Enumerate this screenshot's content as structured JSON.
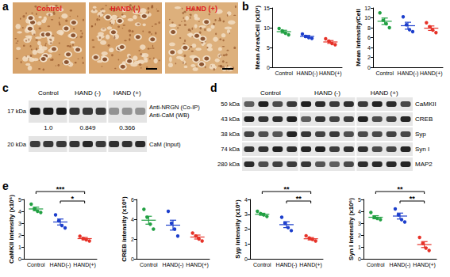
{
  "figure": {
    "panel_labels": [
      "a",
      "b",
      "c",
      "d",
      "e"
    ],
    "histology": {
      "titles": [
        "Control",
        "HAND (-)",
        "HAND (+)"
      ]
    },
    "coip_blot": {
      "groups": [
        "Control",
        "HAND (-)",
        "HAND (+)"
      ],
      "rows": [
        {
          "size": "17 kDa",
          "names": [
            "Anti-NRGN (Co-IP)",
            "Anti-CaM (WB)"
          ],
          "ratios": [
            {
              "value": 1.0,
              "label": "1.0"
            },
            {
              "value": 0.849,
              "label": "0.849"
            },
            {
              "value": 0.366,
              "label": "0.366"
            }
          ]
        },
        {
          "size": "20 kDa",
          "names": [
            "CaM (Input)"
          ]
        }
      ]
    },
    "western_blot": {
      "groups": [
        "Control",
        "HAND (-)",
        "HAND (+)"
      ],
      "rows": [
        {
          "size": "50 kDa",
          "name": "CaMKII"
        },
        {
          "size": "43 kDa",
          "name": "CREB"
        },
        {
          "size": "38 kDa",
          "name": "Syp"
        },
        {
          "size": "74 kDa",
          "name": "Syn I"
        },
        {
          "size": "280 kDa",
          "name": "MAP2"
        }
      ]
    }
  },
  "chart_data": [
    {
      "type": "scatter",
      "ylabel": "Mean Area/Cell (x10³)",
      "categories": [
        "Control",
        "HAND(-)",
        "HAND(+)"
      ],
      "colors": [
        "#22a043",
        "#1d3fcc",
        "#e63228"
      ],
      "points": [
        [
          9.8,
          9.2,
          8.6,
          8.2
        ],
        [
          8.4,
          7.8,
          7.5,
          7.3
        ],
        [
          7.2,
          6.6,
          6.0,
          5.7
        ]
      ],
      "means": [
        9.0,
        7.8,
        6.4
      ],
      "sem": [
        0.35,
        0.25,
        0.35
      ],
      "ylim": [
        0,
        15
      ],
      "yticks": [
        0,
        5,
        10,
        15
      ],
      "grid": false
    },
    {
      "type": "scatter",
      "ylabel": "Mean Intensity/Cell",
      "categories": [
        "Control",
        "HAND(-)",
        "HAND(+)"
      ],
      "colors": [
        "#22a043",
        "#1d3fcc",
        "#e63228"
      ],
      "points": [
        [
          11.0,
          9.5,
          8.8,
          8.0
        ],
        [
          10.2,
          8.6,
          7.6,
          7.2
        ],
        [
          9.0,
          8.2,
          7.5,
          7.0
        ]
      ],
      "means": [
        9.3,
        8.4,
        7.9
      ],
      "sem": [
        0.65,
        0.7,
        0.45
      ],
      "ylim": [
        0,
        12
      ],
      "yticks": [
        0,
        2,
        4,
        6,
        8,
        10,
        12
      ],
      "grid": false
    },
    {
      "type": "scatter",
      "ylabel": "CaMKII intensity (x10⁶)",
      "categories": [
        "Control",
        "HAND(-)",
        "HAND(+)"
      ],
      "colors": [
        "#22a043",
        "#1d3fcc",
        "#e63228"
      ],
      "points": [
        [
          4.6,
          4.2,
          4.0,
          3.9
        ],
        [
          3.7,
          3.2,
          2.8,
          2.6
        ],
        [
          1.9,
          1.7,
          1.6,
          1.5
        ]
      ],
      "means": [
        4.2,
        3.1,
        1.7
      ],
      "sem": [
        0.15,
        0.25,
        0.1
      ],
      "ylim": [
        0,
        5
      ],
      "yticks": [
        0,
        1,
        2,
        3,
        4,
        5
      ],
      "grid": false,
      "significance": [
        {
          "between": [
            "Control",
            "HAND(+)"
          ],
          "label": "***"
        },
        {
          "between": [
            "HAND(-)",
            "HAND(+)"
          ],
          "label": "*"
        }
      ]
    },
    {
      "type": "scatter",
      "ylabel": "CREB intensity (x10⁶)",
      "categories": [
        "Control",
        "HAND(-)",
        "HAND(+)"
      ],
      "colors": [
        "#22a043",
        "#1d3fcc",
        "#e63228"
      ],
      "points": [
        [
          5.0,
          4.2,
          3.5,
          3.0
        ],
        [
          4.8,
          3.6,
          3.0,
          2.3
        ],
        [
          2.6,
          2.3,
          2.0,
          1.8
        ]
      ],
      "means": [
        3.9,
        3.4,
        2.2
      ],
      "sem": [
        0.4,
        0.5,
        0.2
      ],
      "ylim": [
        0,
        6
      ],
      "yticks": [
        0,
        2,
        4,
        6
      ],
      "grid": false
    },
    {
      "type": "scatter",
      "ylabel": "Syp intensity (x10⁶)",
      "categories": [
        "Control",
        "HAND(-)",
        "HAND(+)"
      ],
      "colors": [
        "#22a043",
        "#1d3fcc",
        "#e63228"
      ],
      "points": [
        [
          3.2,
          3.05,
          2.95,
          2.85
        ],
        [
          2.8,
          2.4,
          2.1,
          1.9
        ],
        [
          1.55,
          1.4,
          1.3,
          1.2
        ]
      ],
      "means": [
        3.0,
        2.3,
        1.35
      ],
      "sem": [
        0.07,
        0.2,
        0.08
      ],
      "ylim": [
        0,
        4
      ],
      "yticks": [
        0,
        1,
        2,
        3,
        4
      ],
      "grid": false,
      "significance": [
        {
          "between": [
            "Control",
            "HAND(+)"
          ],
          "label": "**"
        },
        {
          "between": [
            "HAND(-)",
            "HAND(+)"
          ],
          "label": "**"
        }
      ]
    },
    {
      "type": "scatter",
      "ylabel": "Syn I intensity (x10⁶)",
      "categories": [
        "Control",
        "HAND(-)",
        "HAND(+)"
      ],
      "colors": [
        "#22a043",
        "#1d3fcc",
        "#e63228"
      ],
      "points": [
        [
          3.9,
          3.5,
          3.4,
          3.3
        ],
        [
          4.2,
          3.7,
          3.3,
          3.1
        ],
        [
          1.8,
          1.3,
          0.9,
          0.7
        ]
      ],
      "means": [
        3.5,
        3.6,
        1.2
      ],
      "sem": [
        0.13,
        0.25,
        0.25
      ],
      "ylim": [
        0,
        5
      ],
      "yticks": [
        0,
        1,
        2,
        3,
        4,
        5
      ],
      "grid": false,
      "significance": [
        {
          "between": [
            "Control",
            "HAND(+)"
          ],
          "label": "**"
        },
        {
          "between": [
            "HAND(-)",
            "HAND(+)"
          ],
          "label": "**"
        }
      ]
    }
  ]
}
